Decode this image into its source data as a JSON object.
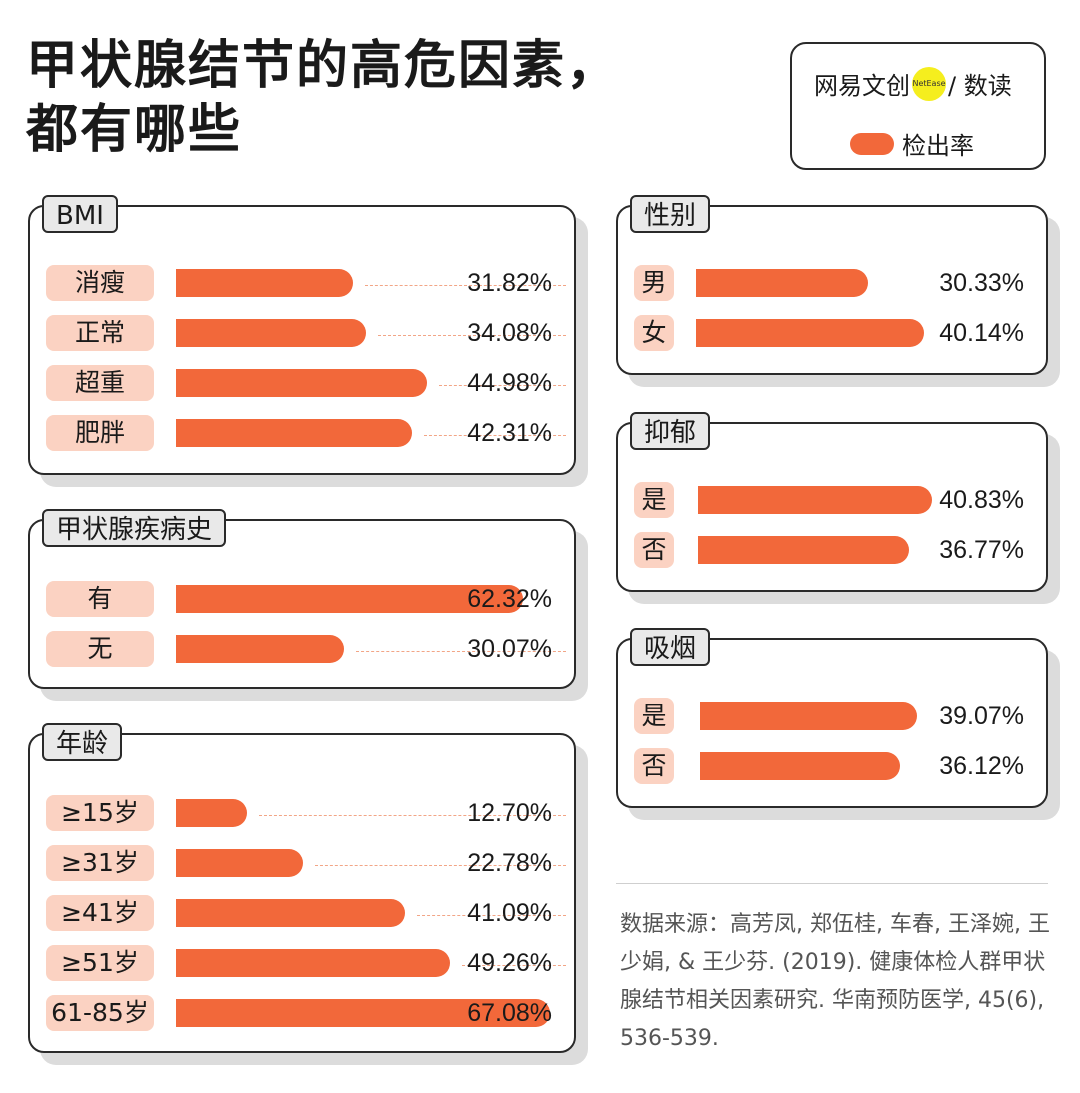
{
  "title": {
    "line1": "甲状腺结节的高危因素，",
    "line2": "都有哪些"
  },
  "legend": {
    "brand_prefix": "网易文创",
    "brand_dot": "NetEase",
    "brand_suffix": "/ 数读",
    "label": "检出率"
  },
  "colors": {
    "bar": "#f2683a",
    "label_bg": "#fbd2c2",
    "tab_bg": "#e9e9e9"
  },
  "chart_data": [
    {
      "type": "bar",
      "title": "BMI",
      "unit": "%",
      "xlim": [
        0,
        70
      ],
      "categories": [
        "消瘦",
        "正常",
        "超重",
        "肥胖"
      ],
      "values": [
        31.82,
        34.08,
        44.98,
        42.31
      ],
      "labels": [
        "31.82%",
        "34.08%",
        "44.98%",
        "42.31%"
      ]
    },
    {
      "type": "bar",
      "title": "甲状腺疾病史",
      "unit": "%",
      "xlim": [
        0,
        70
      ],
      "categories": [
        "有",
        "无"
      ],
      "values": [
        62.32,
        30.07
      ],
      "labels": [
        "62.32%",
        "30.07%"
      ]
    },
    {
      "type": "bar",
      "title": "年龄",
      "unit": "%",
      "xlim": [
        0,
        70
      ],
      "categories": [
        "≥15岁",
        "≥31岁",
        "≥41岁",
        "≥51岁",
        "61-85岁"
      ],
      "values": [
        12.7,
        22.78,
        41.09,
        49.26,
        67.08
      ],
      "labels": [
        "12.70%",
        "22.78%",
        "41.09%",
        "49.26%",
        "67.08%"
      ]
    },
    {
      "type": "bar",
      "title": "性别",
      "unit": "%",
      "xlim": [
        0,
        40.14
      ],
      "categories": [
        "男",
        "女"
      ],
      "values": [
        30.33,
        40.14
      ],
      "labels": [
        "30.33%",
        "40.14%"
      ]
    },
    {
      "type": "bar",
      "title": "抑郁",
      "unit": "%",
      "xlim": [
        0,
        40.83
      ],
      "categories": [
        "是",
        "否"
      ],
      "values": [
        40.83,
        36.77
      ],
      "labels": [
        "40.83%",
        "36.77%"
      ]
    },
    {
      "type": "bar",
      "title": "吸烟",
      "unit": "%",
      "xlim": [
        0,
        44
      ],
      "categories": [
        "是",
        "否"
      ],
      "values": [
        39.07,
        36.12
      ],
      "labels": [
        "39.07%",
        "36.12%"
      ]
    }
  ],
  "source": "数据来源：高芳凤, 郑伍桂, 车春, 王泽婉, 王少娟, & 王少芬. (2019). 健康体检人群甲状腺结节相关因素研究. 华南预防医学, 45(6), 536-539."
}
